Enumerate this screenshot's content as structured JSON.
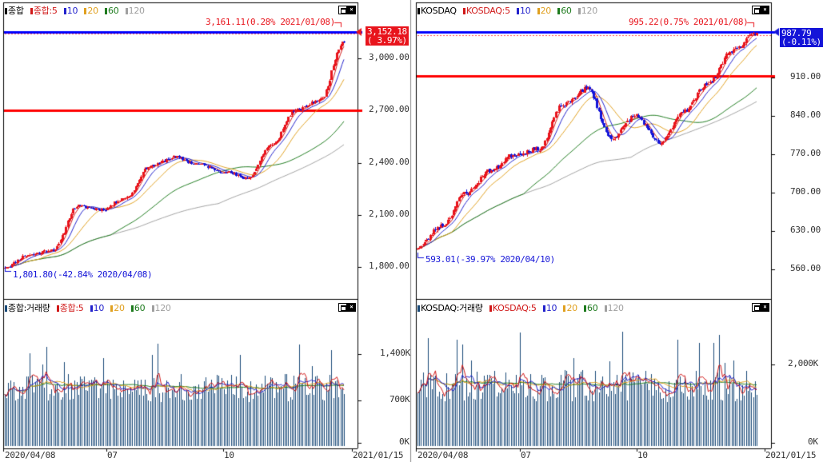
{
  "colors": {
    "up": "#e8141c",
    "down": "#1414d8",
    "ma5": "#d01818",
    "ma10": "#2222cc",
    "ma20": "#e0a020",
    "ma60": "#1e7b1e",
    "ma120": "#a0a0a0",
    "volume": "#1a4a78",
    "redline": "#ff0000",
    "blueline": "#0000ff",
    "axis": "#333333"
  },
  "kospi": {
    "legend": {
      "name": "종합",
      "ma5": "종합:5",
      "ma10": "10",
      "ma20": "20",
      "ma60": "60",
      "ma120": "120"
    },
    "price_axis_ticks": [
      "3,000.00",
      "2,700.00",
      "2,400.00",
      "2,100.00",
      "1,800.00"
    ],
    "current_price": "3,152.18",
    "change_pct": "( 3.97%)",
    "high_annotation": "3,161.11(0.28% 2021/01/08)",
    "low_annotation": "1,801.80(-42.84% 2020/04/08)",
    "volume_legend": {
      "name": "종합:거래량",
      "ma5": "종합:5",
      "ma10": "10",
      "ma20": "20",
      "ma60": "60",
      "ma120": "120"
    },
    "volume_axis_ticks": [
      "1,400K",
      "700K",
      "0K"
    ],
    "date_labels": [
      "2020/04/08",
      "07",
      "10",
      "2021/01/15"
    ]
  },
  "kosdaq": {
    "legend": {
      "name": "KOSDAQ",
      "ma5": "KOSDAQ:5",
      "ma10": "10",
      "ma20": "20",
      "ma60": "60",
      "ma120": "120"
    },
    "price_axis_ticks": [
      "910.00",
      "840.00",
      "770.00",
      "700.00",
      "630.00",
      "560.00"
    ],
    "current_price": "987.79",
    "change_pct": "(-0.11%)",
    "high_annotation": "995.22(0.75% 2021/01/08)",
    "low_annotation": "593.01(-39.97% 2020/04/10)",
    "volume_legend": {
      "name": "KOSDAQ:거래량",
      "ma5": "KOSDAQ:5",
      "ma10": "10",
      "ma20": "20",
      "ma60": "60",
      "ma120": "120"
    },
    "volume_axis_ticks": [
      "2,000K",
      "0K"
    ],
    "date_labels": [
      "2020/04/08",
      "07",
      "10",
      "2021/01/15"
    ]
  },
  "window_buttons": {
    "maximize": "□",
    "close": "×"
  }
}
